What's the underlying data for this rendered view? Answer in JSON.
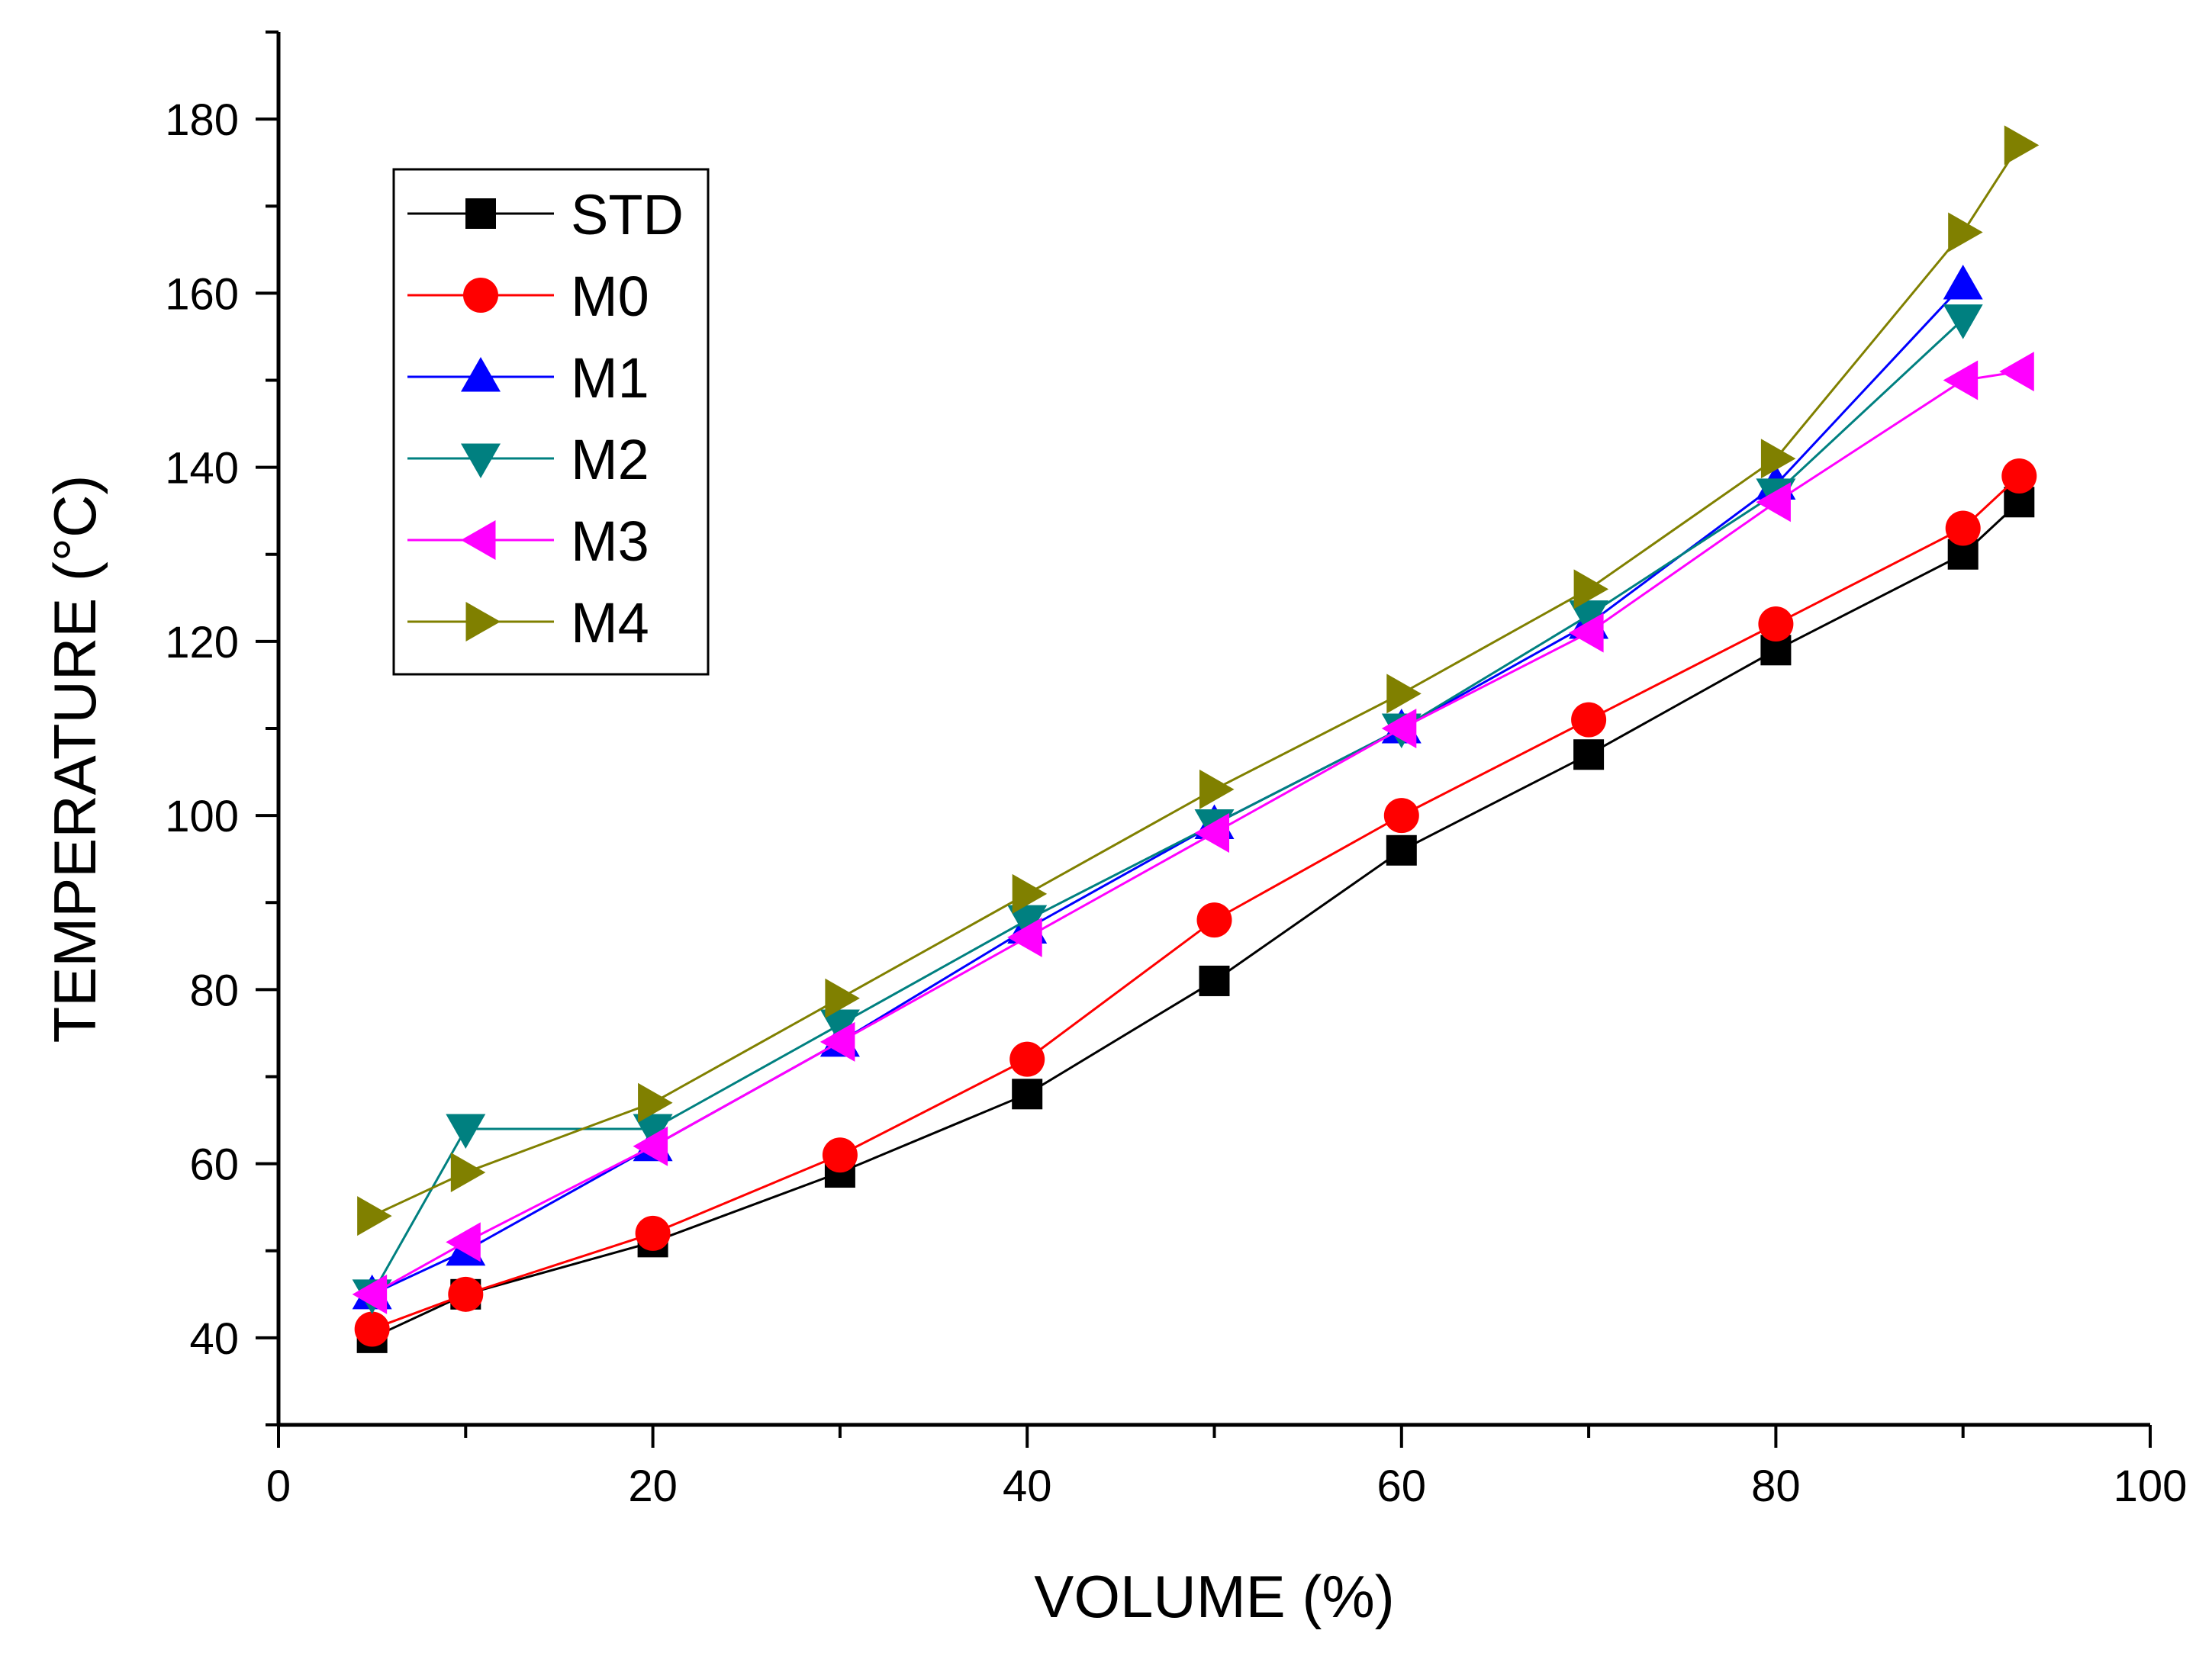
{
  "chart_data": {
    "type": "line",
    "title": "",
    "xlabel": "VOLUME (%)",
    "ylabel": "TEMPERATURE (°C)",
    "xlim": [
      0,
      100
    ],
    "ylim": [
      30,
      190
    ],
    "x_ticks": [
      0,
      20,
      40,
      60,
      80,
      100
    ],
    "y_ticks": [
      40,
      60,
      80,
      100,
      120,
      140,
      160,
      180
    ],
    "grid": false,
    "legend_position": "top-left",
    "x": [
      5,
      10,
      20,
      30,
      40,
      50,
      60,
      70,
      80,
      90,
      93
    ],
    "series": [
      {
        "name": "STD",
        "color": "#000000",
        "marker": "square",
        "values": [
          40,
          45,
          51,
          59,
          68,
          81,
          96,
          107,
          119,
          130,
          136
        ]
      },
      {
        "name": "M0",
        "color": "#ff0000",
        "marker": "circle",
        "values": [
          41,
          45,
          52,
          61,
          72,
          88,
          100,
          111,
          122,
          133,
          139
        ]
      },
      {
        "name": "M1",
        "color": "#0000ff",
        "marker": "triangle-up",
        "values": [
          45,
          50,
          62,
          74,
          87,
          99,
          110,
          122,
          138,
          161,
          null
        ]
      },
      {
        "name": "M2",
        "color": "#008080",
        "marker": "triangle-down",
        "values": [
          45,
          64,
          64,
          76,
          88,
          99,
          110,
          123,
          137,
          157,
          null
        ]
      },
      {
        "name": "M3",
        "color": "#ff00ff",
        "marker": "triangle-left",
        "values": [
          45,
          51,
          62,
          74,
          86,
          98,
          110,
          121,
          136,
          150,
          151
        ]
      },
      {
        "name": "M4",
        "color": "#808000",
        "marker": "triangle-right",
        "values": [
          54,
          59,
          67,
          79,
          91,
          103,
          114,
          126,
          141,
          167,
          177
        ]
      }
    ]
  }
}
